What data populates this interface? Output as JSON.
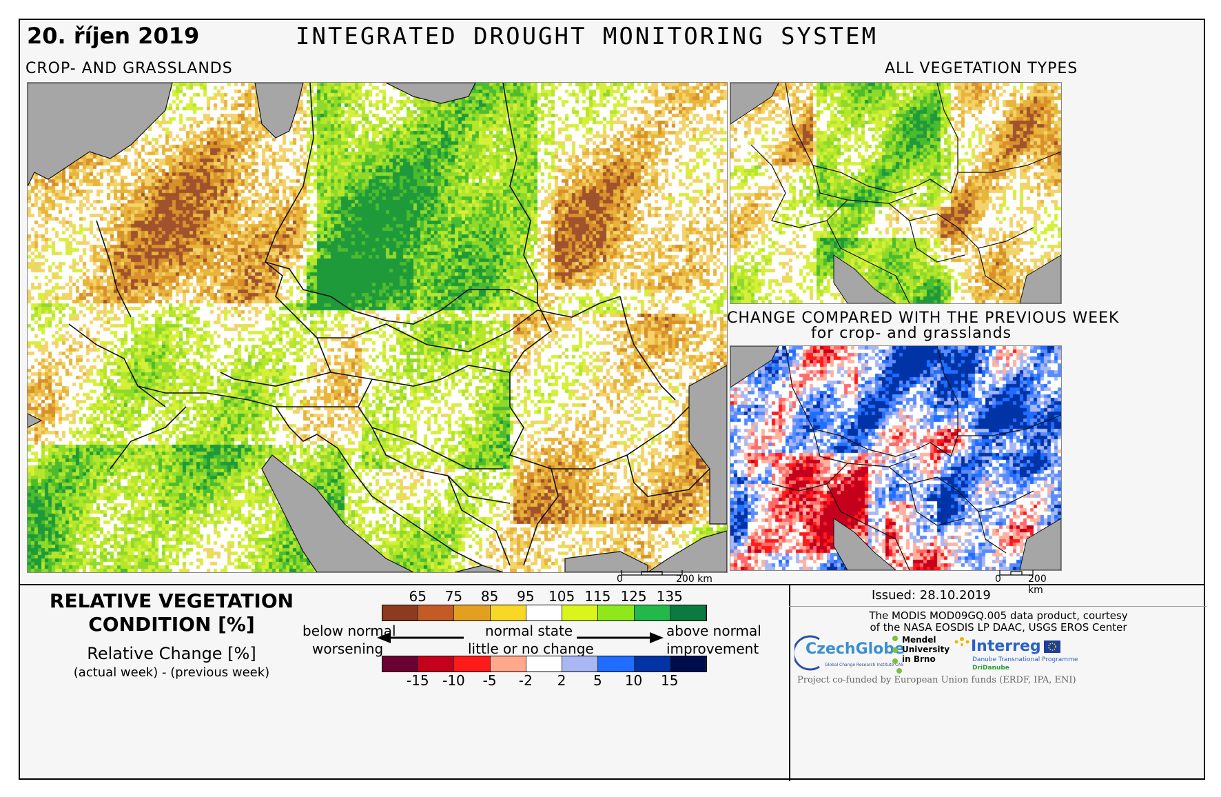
{
  "header": {
    "date": "20. říjen 2019",
    "title": "INTEGRATED DROUGHT MONITORING SYSTEM"
  },
  "panels": {
    "main_label": "CROP- AND GRASSLANDS",
    "all_veg_label": "ALL VEGETATION TYPES",
    "change_label_line1": "CHANGE COMPARED WITH THE PREVIOUS WEEK",
    "change_label_line2": "for crop- and grasslands"
  },
  "scalebars": {
    "main_start": "0",
    "main_end": "200 km",
    "small_start": "0",
    "small_end": "200 km"
  },
  "legend": {
    "title_line1": "RELATIVE VEGETATION",
    "title_line2": "CONDITION [%]",
    "change_title": "Relative Change [%]",
    "change_note": "(actual week) - (previous week)",
    "condition_ticks": [
      "65",
      "75",
      "85",
      "95",
      "105",
      "115",
      "125",
      "135"
    ],
    "condition_colors": [
      "#8c3b1f",
      "#c45a26",
      "#e3a020",
      "#f8d825",
      "#ffffff",
      "#d9f51a",
      "#8ee81a",
      "#22b94a",
      "#0a7a3f"
    ],
    "change_ticks": [
      "-15",
      "-10",
      "-5",
      "-2",
      "2",
      "5",
      "10",
      "15"
    ],
    "change_colors": [
      "#6b0033",
      "#c4001d",
      "#ff1a1a",
      "#ffa88c",
      "#ffffff",
      "#a9b8f5",
      "#1f6eff",
      "#0033a6",
      "#000d4d"
    ],
    "below_normal": "below normal",
    "worsening": "worsening",
    "normal_state": "normal state",
    "little_change": "little or no change",
    "above_normal": "above normal",
    "improvement": "improvement"
  },
  "info": {
    "issued": "Issued: 28.10.2019",
    "credit_line1": "The MODIS MOD09GQ.005 data product, courtesy",
    "credit_line2": "of the NASA EOSDIS LP DAAC, USGS EROS Center",
    "czechglobe": "CzechGlobe",
    "czechglobe_sub": "Global Change Research Institute CAS",
    "mendel_line1": "Mendel",
    "mendel_line2": "University",
    "mendel_line3": "in Brno",
    "interreg": "Interreg",
    "interreg_sub": "Danube Transnational Programme",
    "dridanube": "DriDanube",
    "cofunded": "Project co-funded by European Union funds (ERDF, IPA, ENI)"
  }
}
